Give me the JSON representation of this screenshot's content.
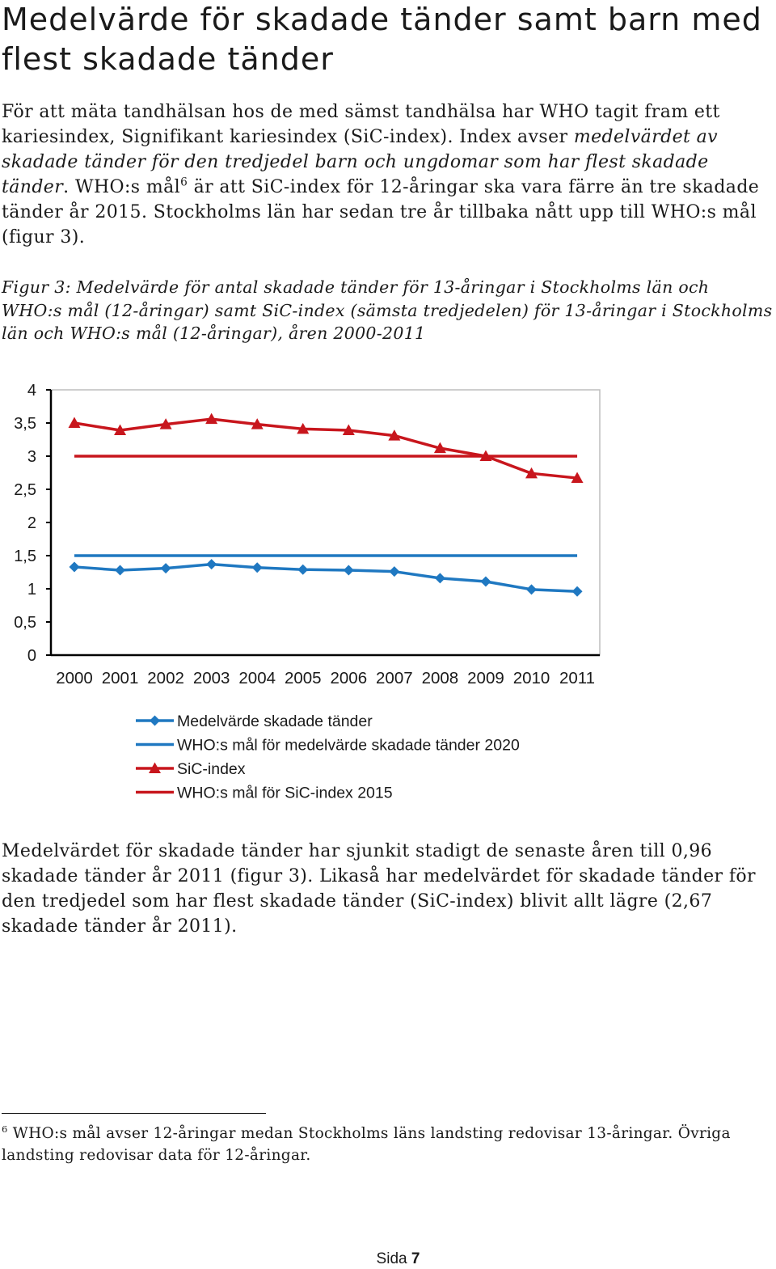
{
  "heading": "Medelvärde för skadade tänder samt barn med flest skadade tänder",
  "intro": {
    "t1": "För att mäta tandhälsan hos de med sämst tandhälsa har WHO tagit fram ett kariesindex, Signifikant kariesindex (SiC-index). Index avser ",
    "t2_italic": "medelvärdet av skadade tänder för den tredjedel barn och ungdomar som har flest skadade tänder",
    "t3": ". WHO:s mål",
    "footnote_ref": "6",
    "t4": " är att SiC-index för 12-åringar ska vara färre än tre skadade tänder år 2015. Stockholms län har sedan tre år tillbaka nått upp till WHO:s mål (figur 3)."
  },
  "figure_caption": "Figur 3: Medelvärde för antal skadade tänder för 13-åringar i Stockholms län och WHO:s mål (12-åringar) samt SiC-index (sämsta tredjedelen) för 13-åringar i Stockholms län och WHO:s mål (12-åringar), åren 2000-2011",
  "chart_data": {
    "type": "line",
    "x": [
      "2000",
      "2001",
      "2002",
      "2003",
      "2004",
      "2005",
      "2006",
      "2007",
      "2008",
      "2009",
      "2010",
      "2011"
    ],
    "y_ticks": [
      "0",
      "0,5",
      "1",
      "1,5",
      "2",
      "2,5",
      "3",
      "3,5",
      "4"
    ],
    "ylim": [
      0,
      4
    ],
    "grid": false,
    "legend_position": "bottom",
    "series": [
      {
        "name": "Medelvärde skadade tänder",
        "color": "#1f78c1",
        "marker": "diamond",
        "values": [
          1.33,
          1.28,
          1.31,
          1.37,
          1.32,
          1.29,
          1.28,
          1.26,
          1.16,
          1.11,
          0.99,
          0.96
        ]
      },
      {
        "name": "WHO:s mål för medelvärde skadade tänder 2020",
        "color": "#1f78c1",
        "marker": "none",
        "values": [
          1.5,
          1.5,
          1.5,
          1.5,
          1.5,
          1.5,
          1.5,
          1.5,
          1.5,
          1.5,
          1.5,
          1.5
        ]
      },
      {
        "name": "SiC-index",
        "color": "#c8161d",
        "marker": "triangle",
        "values": [
          3.5,
          3.39,
          3.48,
          3.56,
          3.48,
          3.41,
          3.39,
          3.31,
          3.12,
          3.0,
          2.74,
          2.67
        ]
      },
      {
        "name": "WHO:s mål för SiC-index 2015",
        "color": "#c8161d",
        "marker": "none",
        "values": [
          3.0,
          3.0,
          3.0,
          3.0,
          3.0,
          3.0,
          3.0,
          3.0,
          3.0,
          3.0,
          3.0,
          3.0
        ]
      }
    ]
  },
  "summary": "Medelvärdet för skadade tänder har sjunkit stadigt de senaste åren till 0,96 skadade tänder år 2011 (figur 3). Likaså har medelvärdet för skadade tänder för den tredjedel som har flest skadade tänder (SiC-index) blivit allt lägre (2,67 skadade tänder år 2011).",
  "footnote": {
    "number": "6",
    "text": " WHO:s mål avser 12-åringar medan Stockholms läns landsting redovisar 13-åringar. Övriga landsting redovisar data för 12-åringar."
  },
  "page": {
    "label": "Sida ",
    "number": "7"
  }
}
